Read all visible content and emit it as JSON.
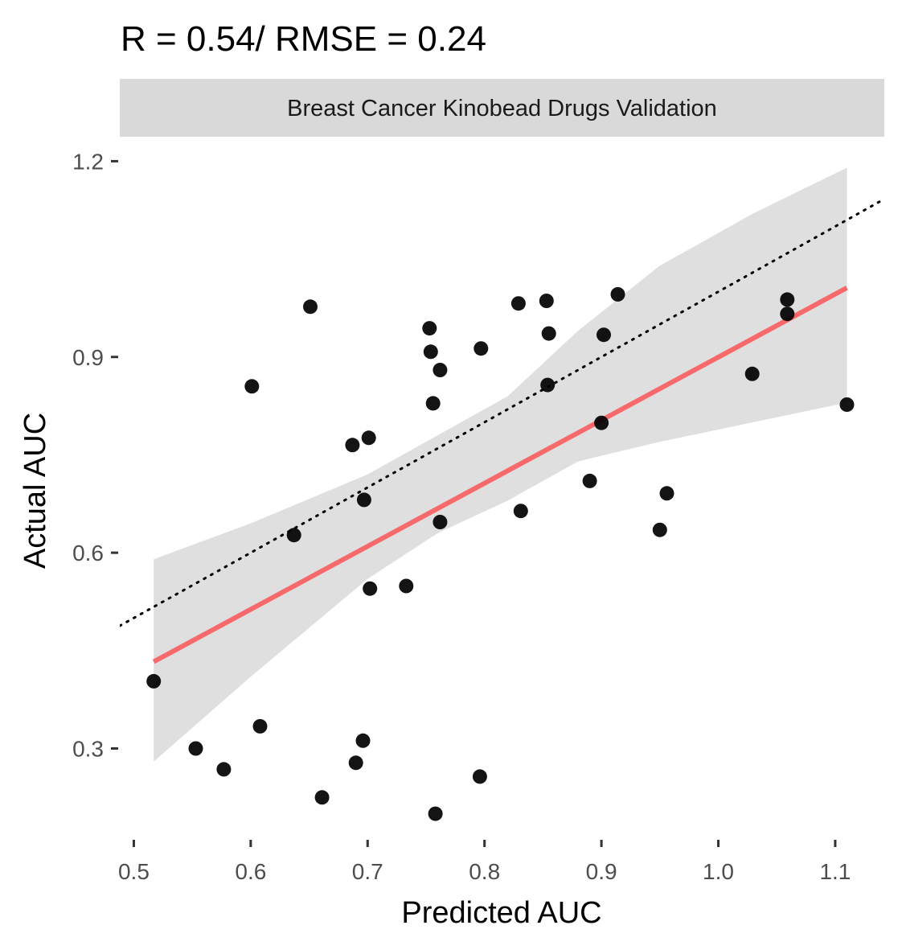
{
  "chart_data": {
    "type": "scatter",
    "title": "R = 0.54/ RMSE = 0.24",
    "facet_label": "Breast Cancer Kinobead Drugs Validation",
    "xlabel": "Predicted AUC",
    "ylabel": "Actual AUC",
    "xlim": [
      0.488,
      1.142
    ],
    "ylim": [
      0.165,
      1.235
    ],
    "x_ticks": [
      "0.5",
      "0.6",
      "0.7",
      "0.8",
      "0.9",
      "1.0",
      "1.1"
    ],
    "x_tick_values": [
      0.5,
      0.6,
      0.7,
      0.8,
      0.9,
      1.0,
      1.1
    ],
    "y_ticks": [
      "0.3",
      "0.6",
      "0.9",
      "1.2"
    ],
    "y_tick_values": [
      0.3,
      0.6,
      0.9,
      1.2
    ],
    "grid": false,
    "points": [
      {
        "x": 0.517,
        "y": 0.403
      },
      {
        "x": 0.553,
        "y": 0.3
      },
      {
        "x": 0.577,
        "y": 0.268
      },
      {
        "x": 0.601,
        "y": 0.855
      },
      {
        "x": 0.608,
        "y": 0.334
      },
      {
        "x": 0.637,
        "y": 0.627
      },
      {
        "x": 0.651,
        "y": 0.977
      },
      {
        "x": 0.661,
        "y": 0.225
      },
      {
        "x": 0.687,
        "y": 0.765
      },
      {
        "x": 0.69,
        "y": 0.278
      },
      {
        "x": 0.696,
        "y": 0.312
      },
      {
        "x": 0.697,
        "y": 0.681
      },
      {
        "x": 0.701,
        "y": 0.776
      },
      {
        "x": 0.702,
        "y": 0.545
      },
      {
        "x": 0.733,
        "y": 0.549
      },
      {
        "x": 0.753,
        "y": 0.944
      },
      {
        "x": 0.754,
        "y": 0.908
      },
      {
        "x": 0.756,
        "y": 0.829
      },
      {
        "x": 0.758,
        "y": 0.2
      },
      {
        "x": 0.762,
        "y": 0.88
      },
      {
        "x": 0.762,
        "y": 0.647
      },
      {
        "x": 0.796,
        "y": 0.257
      },
      {
        "x": 0.797,
        "y": 0.913
      },
      {
        "x": 0.829,
        "y": 0.982
      },
      {
        "x": 0.831,
        "y": 0.664
      },
      {
        "x": 0.853,
        "y": 0.986
      },
      {
        "x": 0.854,
        "y": 0.857
      },
      {
        "x": 0.855,
        "y": 0.936
      },
      {
        "x": 0.89,
        "y": 0.71
      },
      {
        "x": 0.9,
        "y": 0.799
      },
      {
        "x": 0.902,
        "y": 0.934
      },
      {
        "x": 0.914,
        "y": 0.996
      },
      {
        "x": 0.95,
        "y": 0.635
      },
      {
        "x": 0.956,
        "y": 0.691
      },
      {
        "x": 1.029,
        "y": 0.874
      },
      {
        "x": 1.059,
        "y": 0.988
      },
      {
        "x": 1.059,
        "y": 0.966
      },
      {
        "x": 1.11,
        "y": 0.827
      }
    ],
    "fit_line": {
      "x": [
        0.517,
        1.11
      ],
      "y": [
        0.433,
        1.006
      ],
      "color": "#f8696b"
    },
    "confidence_band": {
      "x": [
        0.517,
        0.6,
        0.7,
        0.76,
        0.82,
        0.88,
        0.95,
        1.03,
        1.11
      ],
      "upper": [
        0.59,
        0.645,
        0.72,
        0.78,
        0.84,
        0.94,
        1.04,
        1.12,
        1.19
      ],
      "lower": [
        0.28,
        0.41,
        0.56,
        0.63,
        0.68,
        0.74,
        0.77,
        0.8,
        0.83
      ],
      "color": "#d9d9d9"
    },
    "identity_line": {
      "x": [
        0.488,
        1.142
      ],
      "y": [
        0.488,
        1.142
      ],
      "style": "dotted"
    },
    "colors": {
      "points": "#000000",
      "strip": "#d9d9d9",
      "band": "#d9d9d9",
      "fit": "#f8696b"
    }
  }
}
